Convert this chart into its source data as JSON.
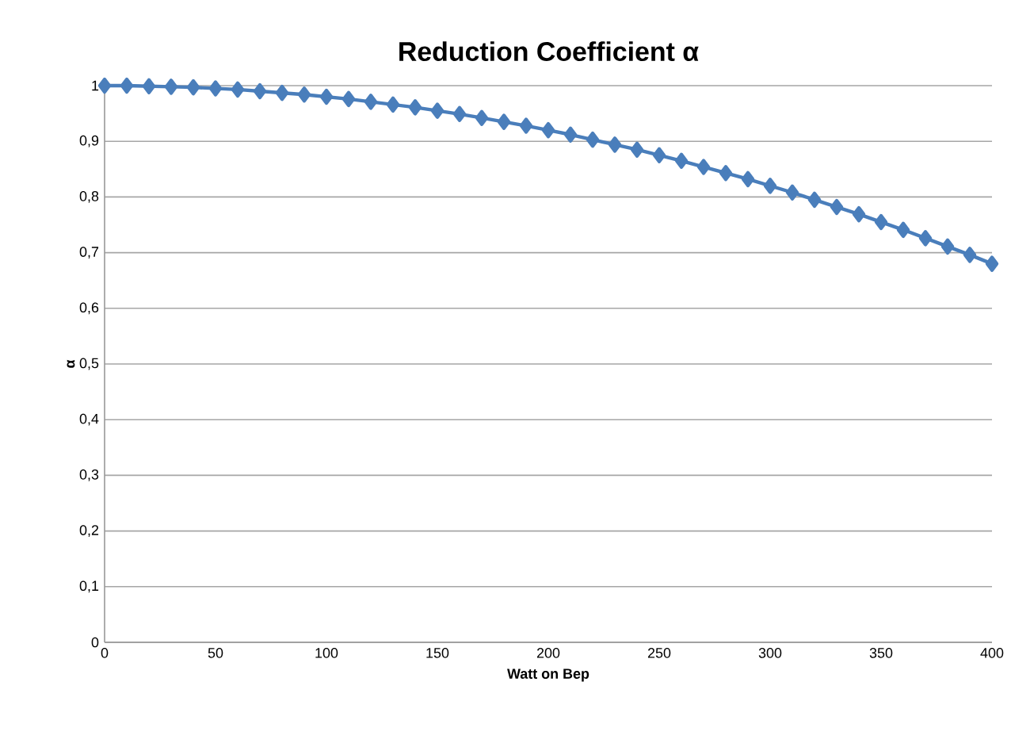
{
  "chart_data": {
    "type": "line",
    "title": "Reduction Coefficient α",
    "xlabel": "Watt on Bep",
    "ylabel": "α",
    "x": [
      0,
      10,
      20,
      30,
      40,
      50,
      60,
      70,
      80,
      90,
      100,
      110,
      120,
      130,
      140,
      150,
      160,
      170,
      180,
      190,
      200,
      210,
      220,
      230,
      240,
      250,
      260,
      270,
      280,
      290,
      300,
      310,
      320,
      330,
      340,
      350,
      360,
      370,
      380,
      390,
      400
    ],
    "series": [
      {
        "color": "#4a7ebb",
        "values": [
          1.0,
          1.0,
          0.999,
          0.998,
          0.997,
          0.995,
          0.993,
          0.99,
          0.987,
          0.984,
          0.98,
          0.976,
          0.971,
          0.966,
          0.961,
          0.955,
          0.949,
          0.942,
          0.935,
          0.928,
          0.92,
          0.912,
          0.903,
          0.894,
          0.885,
          0.875,
          0.865,
          0.854,
          0.843,
          0.832,
          0.82,
          0.808,
          0.795,
          0.782,
          0.769,
          0.755,
          0.741,
          0.726,
          0.711,
          0.696,
          0.68
        ]
      }
    ],
    "xlim": [
      0,
      400
    ],
    "xticks": [
      0,
      50,
      100,
      150,
      200,
      250,
      300,
      350,
      400
    ],
    "ylim": [
      0,
      1
    ],
    "yticks": [
      0,
      {
        "value": 0.1,
        "label": "0,1"
      },
      {
        "value": 0.2,
        "label": "0,2"
      },
      {
        "value": 0.3,
        "label": "0,3"
      },
      {
        "value": 0.4,
        "label": "0,4"
      },
      {
        "value": 0.5,
        "label": "0,5"
      },
      {
        "value": 0.6,
        "label": "0,6"
      },
      {
        "value": 0.7,
        "label": "0,7"
      },
      {
        "value": 0.8,
        "label": "0,8"
      },
      {
        "value": 0.9,
        "label": "0,9"
      },
      1
    ],
    "grid": "y",
    "marker": "diamond",
    "line_style": "solid"
  }
}
